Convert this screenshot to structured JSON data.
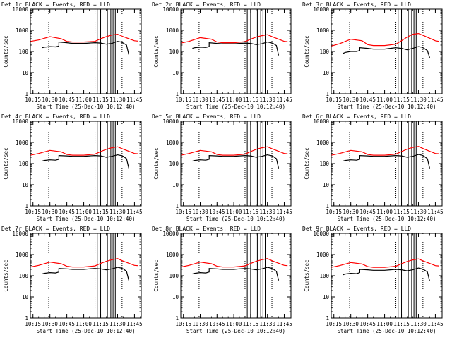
{
  "colors": {
    "events": "#000000",
    "lld": "#ff0000",
    "axis": "#000000",
    "background": "#ffffff"
  },
  "chart_data": [
    {
      "type": "line",
      "title": "Det 1r BLACK = Events, RED = LLD",
      "xlabel": "Start Time (25-Dec-10 10:12:40)",
      "ylabel": "Counts/sec",
      "x_ticks": [
        "10:15",
        "10:30",
        "10:45",
        "11:00",
        "11:15",
        "11:30",
        "11:45"
      ],
      "y_ticks": [
        "1",
        "10",
        "100",
        "1000",
        "10000"
      ],
      "ylim": [
        1,
        10000
      ],
      "log_y": true,
      "series": [
        {
          "name": "LLD",
          "color": "red",
          "x": [
            "10:13",
            "10:20",
            "10:30",
            "10:40",
            "10:45",
            "10:50",
            "11:00",
            "11:10",
            "11:15",
            "11:20",
            "11:25",
            "11:30",
            "11:35",
            "11:40",
            "11:45",
            "11:48"
          ],
          "values": [
            300,
            350,
            500,
            400,
            300,
            280,
            280,
            300,
            400,
            500,
            600,
            650,
            500,
            400,
            320,
            310
          ]
        },
        {
          "name": "Events",
          "color": "black",
          "x": [
            "10:23",
            "10:25",
            "10:30",
            "10:35",
            "10:38",
            "10:38",
            "10:45",
            "10:50",
            "11:00",
            "11:05",
            "11:10",
            "11:15",
            "11:20",
            "11:25",
            "11:30",
            "11:33",
            "11:35",
            "11:38",
            "11:40"
          ],
          "values": [
            150,
            160,
            170,
            165,
            180,
            280,
            260,
            240,
            240,
            250,
            260,
            250,
            220,
            240,
            300,
            280,
            250,
            200,
            70
          ]
        }
      ]
    },
    {
      "type": "line",
      "title": "Det 2r BLACK = Events, RED = LLD",
      "xlabel": "Start Time (25-Dec-10 10:12:40)",
      "ylabel": "Counts/sec",
      "x_ticks": [
        "10:15",
        "10:30",
        "10:45",
        "11:00",
        "11:15",
        "11:30",
        "11:45"
      ],
      "y_ticks": [
        "1",
        "10",
        "100",
        "1000",
        "10000"
      ],
      "ylim": [
        1,
        10000
      ],
      "log_y": true,
      "series": [
        {
          "name": "LLD",
          "color": "red",
          "x": [
            "10:13",
            "10:20",
            "10:30",
            "10:40",
            "10:45",
            "10:50",
            "11:00",
            "11:10",
            "11:15",
            "11:20",
            "11:25",
            "11:30",
            "11:35",
            "11:40",
            "11:45",
            "11:48"
          ],
          "values": [
            250,
            300,
            450,
            380,
            280,
            260,
            260,
            290,
            380,
            480,
            560,
            620,
            480,
            380,
            300,
            290
          ]
        },
        {
          "name": "Events",
          "color": "black",
          "x": [
            "10:23",
            "10:25",
            "10:30",
            "10:35",
            "10:38",
            "10:38",
            "10:45",
            "10:50",
            "11:00",
            "11:05",
            "11:10",
            "11:15",
            "11:20",
            "11:25",
            "11:30",
            "11:33",
            "11:35",
            "11:38",
            "11:40"
          ],
          "values": [
            140,
            150,
            160,
            155,
            170,
            260,
            240,
            230,
            230,
            240,
            250,
            240,
            210,
            230,
            280,
            260,
            240,
            190,
            65
          ]
        }
      ]
    },
    {
      "type": "line",
      "title": "Det 3r BLACK = Events, RED = LLD",
      "xlabel": "Start Time (25-Dec-10 10:12:40)",
      "ylabel": "Counts/sec",
      "x_ticks": [
        "10:15",
        "10:30",
        "10:45",
        "11:00",
        "11:15",
        "11:30",
        "11:45"
      ],
      "y_ticks": [
        "1",
        "10",
        "100",
        "1000",
        "10000"
      ],
      "ylim": [
        1,
        10000
      ],
      "log_y": true,
      "series": [
        {
          "name": "LLD",
          "color": "red",
          "x": [
            "10:13",
            "10:20",
            "10:30",
            "10:40",
            "10:45",
            "10:50",
            "11:00",
            "11:10",
            "11:15",
            "11:20",
            "11:25",
            "11:30",
            "11:35",
            "11:40",
            "11:45",
            "11:48"
          ],
          "values": [
            180,
            230,
            380,
            320,
            210,
            190,
            190,
            220,
            320,
            480,
            650,
            700,
            550,
            420,
            320,
            300
          ]
        },
        {
          "name": "Events",
          "color": "black",
          "x": [
            "10:23",
            "10:25",
            "10:30",
            "10:35",
            "10:38",
            "10:38",
            "10:45",
            "10:50",
            "11:00",
            "11:05",
            "11:10",
            "11:15",
            "11:20",
            "11:25",
            "11:30",
            "11:33",
            "11:35",
            "11:38",
            "11:40"
          ],
          "values": [
            80,
            90,
            100,
            100,
            110,
            150,
            140,
            130,
            130,
            140,
            150,
            140,
            120,
            140,
            170,
            160,
            140,
            110,
            50
          ]
        }
      ]
    },
    {
      "type": "line",
      "title": "Det 4r BLACK = Events, RED = LLD",
      "xlabel": "Start Time (25-Dec-10 10:12:40)",
      "ylabel": "Counts/sec",
      "x_ticks": [
        "10:15",
        "10:30",
        "10:45",
        "11:00",
        "11:15",
        "11:30",
        "11:45"
      ],
      "y_ticks": [
        "1",
        "10",
        "100",
        "1000",
        "10000"
      ],
      "ylim": [
        1,
        10000
      ],
      "log_y": true,
      "series": [
        {
          "name": "LLD",
          "color": "red",
          "x": [
            "10:13",
            "10:20",
            "10:30",
            "10:40",
            "10:45",
            "10:50",
            "11:00",
            "11:10",
            "11:15",
            "11:20",
            "11:25",
            "11:30",
            "11:35",
            "11:40",
            "11:45",
            "11:48"
          ],
          "values": [
            250,
            300,
            420,
            360,
            270,
            250,
            250,
            280,
            370,
            470,
            560,
            620,
            480,
            380,
            300,
            290
          ]
        },
        {
          "name": "Events",
          "color": "black",
          "x": [
            "10:23",
            "10:25",
            "10:30",
            "10:35",
            "10:38",
            "10:38",
            "10:45",
            "10:50",
            "11:00",
            "11:05",
            "11:10",
            "11:15",
            "11:20",
            "11:25",
            "11:30",
            "11:33",
            "11:35",
            "11:38",
            "11:40"
          ],
          "values": [
            130,
            140,
            150,
            145,
            160,
            240,
            230,
            220,
            220,
            230,
            240,
            230,
            200,
            220,
            260,
            240,
            220,
            170,
            60
          ]
        }
      ]
    },
    {
      "type": "line",
      "title": "Det 5r BLACK = Events, RED = LLD",
      "xlabel": "Start Time (25-Dec-10 10:12:40)",
      "ylabel": "Counts/sec",
      "x_ticks": [
        "10:15",
        "10:30",
        "10:45",
        "11:00",
        "11:15",
        "11:30",
        "11:45"
      ],
      "y_ticks": [
        "1",
        "10",
        "100",
        "1000",
        "10000"
      ],
      "ylim": [
        1,
        10000
      ],
      "log_y": true,
      "series": [
        {
          "name": "LLD",
          "color": "red",
          "x": [
            "10:13",
            "10:20",
            "10:30",
            "10:40",
            "10:45",
            "10:50",
            "11:00",
            "11:10",
            "11:15",
            "11:20",
            "11:25",
            "11:30",
            "11:35",
            "11:40",
            "11:45",
            "11:48"
          ],
          "values": [
            250,
            300,
            420,
            360,
            270,
            250,
            250,
            280,
            370,
            470,
            560,
            620,
            480,
            380,
            300,
            290
          ]
        },
        {
          "name": "Events",
          "color": "black",
          "x": [
            "10:23",
            "10:25",
            "10:30",
            "10:35",
            "10:38",
            "10:38",
            "10:45",
            "10:50",
            "11:00",
            "11:05",
            "11:10",
            "11:15",
            "11:20",
            "11:25",
            "11:30",
            "11:33",
            "11:35",
            "11:38",
            "11:40"
          ],
          "values": [
            130,
            140,
            150,
            145,
            160,
            240,
            230,
            220,
            220,
            230,
            240,
            230,
            200,
            220,
            260,
            240,
            220,
            170,
            60
          ]
        }
      ]
    },
    {
      "type": "line",
      "title": "Det 6r BLACK = Events, RED = LLD",
      "xlabel": "Start Time (25-Dec-10 10:12:40)",
      "ylabel": "Counts/sec",
      "x_ticks": [
        "10:15",
        "10:30",
        "10:45",
        "11:00",
        "11:15",
        "11:30",
        "11:45"
      ],
      "y_ticks": [
        "1",
        "10",
        "100",
        "1000",
        "10000"
      ],
      "ylim": [
        1,
        10000
      ],
      "log_y": true,
      "series": [
        {
          "name": "LLD",
          "color": "red",
          "x": [
            "10:13",
            "10:20",
            "10:30",
            "10:40",
            "10:45",
            "10:50",
            "11:00",
            "11:10",
            "11:15",
            "11:20",
            "11:25",
            "11:30",
            "11:35",
            "11:40",
            "11:45",
            "11:48"
          ],
          "values": [
            250,
            300,
            420,
            360,
            270,
            250,
            250,
            280,
            370,
            480,
            580,
            640,
            490,
            380,
            300,
            290
          ]
        },
        {
          "name": "Events",
          "color": "black",
          "x": [
            "10:23",
            "10:25",
            "10:30",
            "10:35",
            "10:38",
            "10:38",
            "10:45",
            "10:50",
            "11:00",
            "11:05",
            "11:10",
            "11:15",
            "11:20",
            "11:25",
            "11:30",
            "11:33",
            "11:35",
            "11:38",
            "11:40"
          ],
          "values": [
            130,
            140,
            150,
            145,
            160,
            240,
            230,
            220,
            220,
            230,
            240,
            230,
            200,
            220,
            270,
            250,
            220,
            170,
            60
          ]
        }
      ]
    },
    {
      "type": "line",
      "title": "Det 7r BLACK = Events, RED = LLD",
      "xlabel": "Start Time (25-Dec-10 10:12:40)",
      "ylabel": "Counts/sec",
      "x_ticks": [
        "10:15",
        "10:30",
        "10:45",
        "11:00",
        "11:15",
        "11:30",
        "11:45"
      ],
      "y_ticks": [
        "1",
        "10",
        "100",
        "1000",
        "10000"
      ],
      "ylim": [
        1,
        10000
      ],
      "log_y": true,
      "series": [
        {
          "name": "LLD",
          "color": "red",
          "x": [
            "10:13",
            "10:20",
            "10:30",
            "10:40",
            "10:45",
            "10:50",
            "11:00",
            "11:10",
            "11:15",
            "11:20",
            "11:25",
            "11:30",
            "11:35",
            "11:40",
            "11:45",
            "11:48"
          ],
          "values": [
            260,
            310,
            440,
            370,
            280,
            260,
            260,
            290,
            380,
            480,
            570,
            640,
            490,
            390,
            310,
            300
          ]
        },
        {
          "name": "Events",
          "color": "black",
          "x": [
            "10:23",
            "10:25",
            "10:30",
            "10:35",
            "10:38",
            "10:38",
            "10:45",
            "10:50",
            "11:00",
            "11:05",
            "11:10",
            "11:15",
            "11:20",
            "11:25",
            "11:30",
            "11:33",
            "11:35",
            "11:38",
            "11:40"
          ],
          "values": [
            120,
            130,
            140,
            135,
            150,
            220,
            210,
            200,
            200,
            210,
            220,
            210,
            190,
            210,
            250,
            230,
            210,
            160,
            60
          ]
        }
      ]
    },
    {
      "type": "line",
      "title": "Det 8r BLACK = Events, RED = LLD",
      "xlabel": "Start Time (25-Dec-10 10:12:40)",
      "ylabel": "Counts/sec",
      "x_ticks": [
        "10:15",
        "10:30",
        "10:45",
        "11:00",
        "11:15",
        "11:30",
        "11:45"
      ],
      "y_ticks": [
        "1",
        "10",
        "100",
        "1000",
        "10000"
      ],
      "ylim": [
        1,
        10000
      ],
      "log_y": true,
      "series": [
        {
          "name": "LLD",
          "color": "red",
          "x": [
            "10:13",
            "10:20",
            "10:30",
            "10:40",
            "10:45",
            "10:50",
            "11:00",
            "11:10",
            "11:15",
            "11:20",
            "11:25",
            "11:30",
            "11:35",
            "11:40",
            "11:45",
            "11:48"
          ],
          "values": [
            260,
            310,
            440,
            370,
            280,
            260,
            260,
            290,
            380,
            480,
            570,
            640,
            490,
            390,
            310,
            300
          ]
        },
        {
          "name": "Events",
          "color": "black",
          "x": [
            "10:23",
            "10:25",
            "10:30",
            "10:35",
            "10:38",
            "10:38",
            "10:45",
            "10:50",
            "11:00",
            "11:05",
            "11:10",
            "11:15",
            "11:20",
            "11:25",
            "11:30",
            "11:33",
            "11:35",
            "11:38",
            "11:40"
          ],
          "values": [
            120,
            130,
            140,
            135,
            150,
            220,
            210,
            200,
            200,
            210,
            220,
            210,
            190,
            210,
            250,
            230,
            210,
            160,
            60
          ]
        }
      ]
    },
    {
      "type": "line",
      "title": "Det 9r BLACK = Events, RED = LLD",
      "xlabel": "Start Time (25-Dec-10 10:12:40)",
      "ylabel": "Counts/sec",
      "x_ticks": [
        "10:15",
        "10:30",
        "10:45",
        "11:00",
        "11:15",
        "11:30",
        "11:45"
      ],
      "y_ticks": [
        "1",
        "10",
        "100",
        "1000",
        "10000"
      ],
      "ylim": [
        1,
        10000
      ],
      "log_y": true,
      "series": [
        {
          "name": "LLD",
          "color": "red",
          "x": [
            "10:13",
            "10:20",
            "10:30",
            "10:40",
            "10:45",
            "10:50",
            "11:00",
            "11:10",
            "11:15",
            "11:20",
            "11:25",
            "11:30",
            "11:35",
            "11:40",
            "11:45",
            "11:48"
          ],
          "values": [
            250,
            300,
            420,
            360,
            270,
            250,
            250,
            280,
            370,
            470,
            560,
            620,
            480,
            380,
            300,
            290
          ]
        },
        {
          "name": "Events",
          "color": "black",
          "x": [
            "10:23",
            "10:25",
            "10:30",
            "10:35",
            "10:38",
            "10:38",
            "10:45",
            "10:50",
            "11:00",
            "11:05",
            "11:10",
            "11:15",
            "11:20",
            "11:25",
            "11:30",
            "11:33",
            "11:35",
            "11:38",
            "11:40"
          ],
          "values": [
            110,
            120,
            130,
            125,
            140,
            200,
            190,
            180,
            180,
            190,
            200,
            190,
            170,
            190,
            230,
            210,
            190,
            150,
            55
          ]
        }
      ]
    }
  ],
  "markers": {
    "dotted": [
      "10:29",
      "11:10",
      "11:34"
    ],
    "solid": [
      "11:12",
      "11:15",
      "11:21",
      "11:24",
      "11:26",
      "11:28"
    ]
  }
}
